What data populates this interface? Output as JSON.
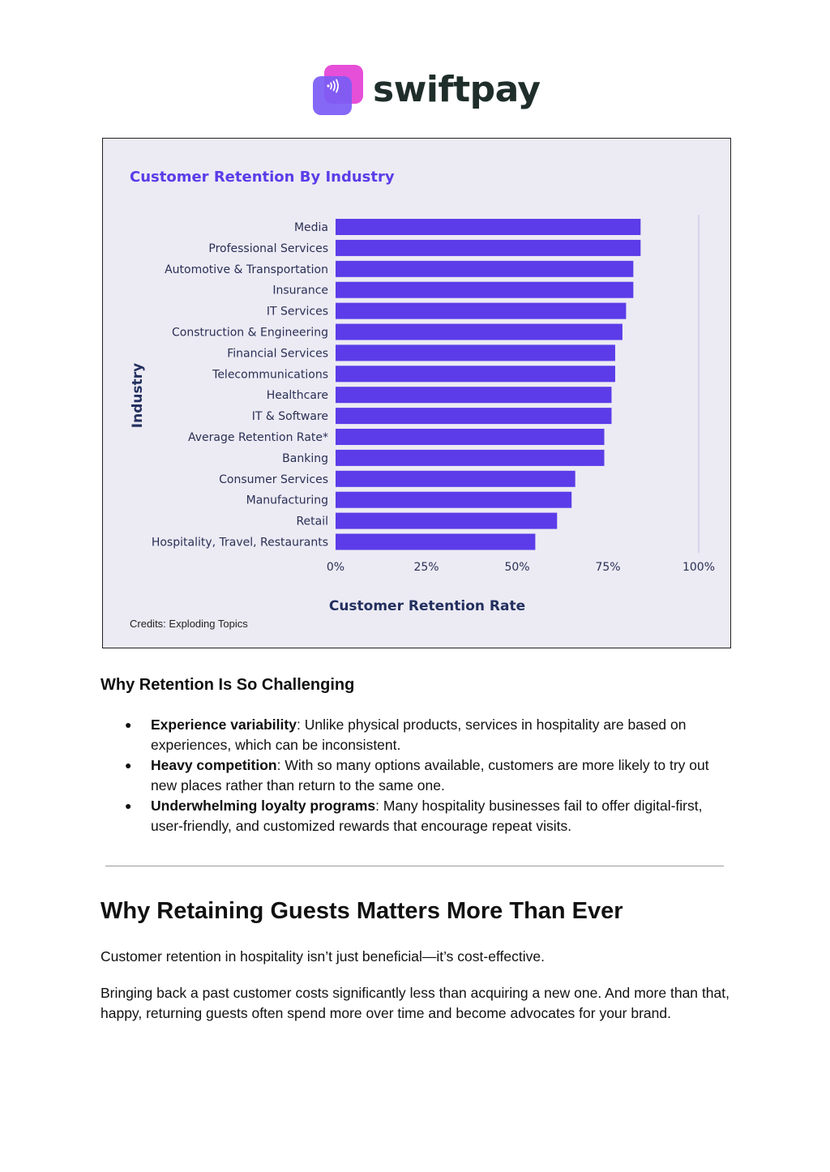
{
  "brand": {
    "name": "swiftpay",
    "icon": "contactless-payment-icon",
    "colors": {
      "text": "#1f2e2a",
      "pink": "#e64fd8",
      "purple": "#7b5cf5",
      "wave": "#ffffff"
    }
  },
  "chart_data": {
    "type": "bar",
    "orientation": "horizontal",
    "title": "Customer Retention By Industry",
    "xlabel": "Customer Retention Rate",
    "ylabel": "Industry",
    "categories": [
      "Media",
      "Professional Services",
      "Automotive & Transportation",
      "Insurance",
      "IT Services",
      "Construction & Engineering",
      "Financial Services",
      "Telecommunications",
      "Healthcare",
      "IT & Software",
      "Average Retention Rate*",
      "Banking",
      "Consumer Services",
      "Manufacturing",
      "Retail",
      "Hospitality, Travel, Restaurants"
    ],
    "values": [
      84,
      84,
      82,
      82,
      80,
      79,
      77,
      77,
      76,
      76,
      74,
      74,
      66,
      65,
      61,
      55
    ],
    "unit": "%",
    "xlim": [
      0,
      100
    ],
    "xticks": [
      "0%",
      "25%",
      "50%",
      "75%",
      "100%"
    ],
    "grid": "vertical line at 100%",
    "colors": {
      "bar": "#5b3ce8",
      "title": "#5b3ce8",
      "axis_title": "#23305f",
      "label": "#2a2f55",
      "background": "#ecebf4",
      "gridline": "#cfcde6"
    },
    "credits": "Credits: Exploding Topics"
  },
  "section": {
    "heading": "Why Retention Is So Challenging",
    "bullets": [
      {
        "term": "Experience variability",
        "text": ": Unlike physical products, services in hospitality are based on experiences, which can be inconsistent."
      },
      {
        "term": "Heavy competition",
        "text": ": With so many options available, customers are more likely to try out new places rather than return to the same one."
      },
      {
        "term": "Underwhelming loyalty programs",
        "text": ": Many hospitality businesses fail to offer digital-first, user-friendly, and customized rewards that encourage repeat visits."
      }
    ],
    "bullet_glyph": "●"
  },
  "article": {
    "heading": "Why Retaining Guests Matters More Than Ever",
    "paragraphs": [
      "Customer retention in hospitality isn’t just beneficial—it’s cost-effective.",
      "Bringing back a past customer costs significantly less than acquiring a new one. And more than that, happy, returning guests often spend more over time and become advocates for your brand."
    ]
  }
}
